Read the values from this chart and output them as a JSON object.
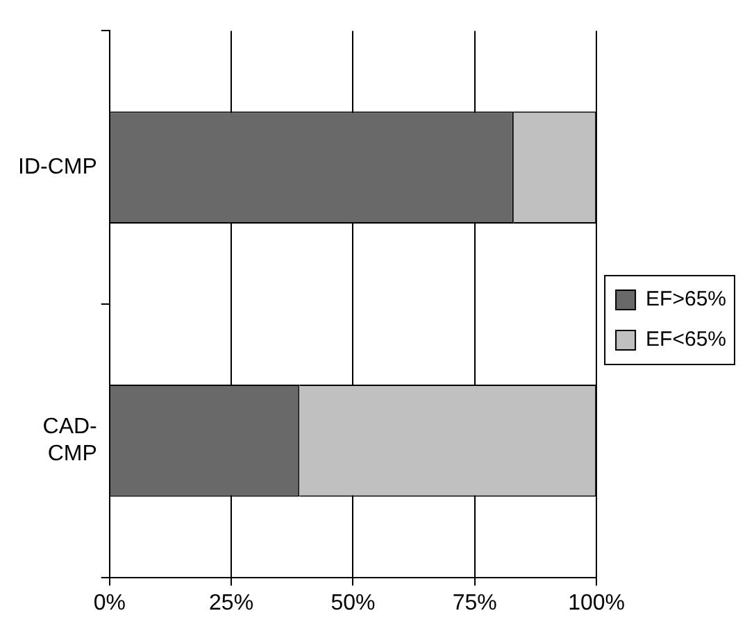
{
  "chart_data": {
    "type": "bar",
    "orientation": "horizontal",
    "stacked": true,
    "categories": [
      "ID-CMP",
      "CAD-CMP"
    ],
    "series": [
      {
        "name": "EF>65%",
        "color": "#696969",
        "values": [
          83,
          39
        ]
      },
      {
        "name": "EF<65%",
        "color": "#c0c0c0",
        "values": [
          17,
          61
        ]
      }
    ],
    "xlim": [
      0,
      100
    ],
    "xticks": [
      {
        "value": 0,
        "label": "0%"
      },
      {
        "value": 25,
        "label": "25%"
      },
      {
        "value": 50,
        "label": "50%"
      },
      {
        "value": 75,
        "label": "75%"
      },
      {
        "value": 100,
        "label": "100%"
      }
    ],
    "grid": "x",
    "legend": "right"
  }
}
